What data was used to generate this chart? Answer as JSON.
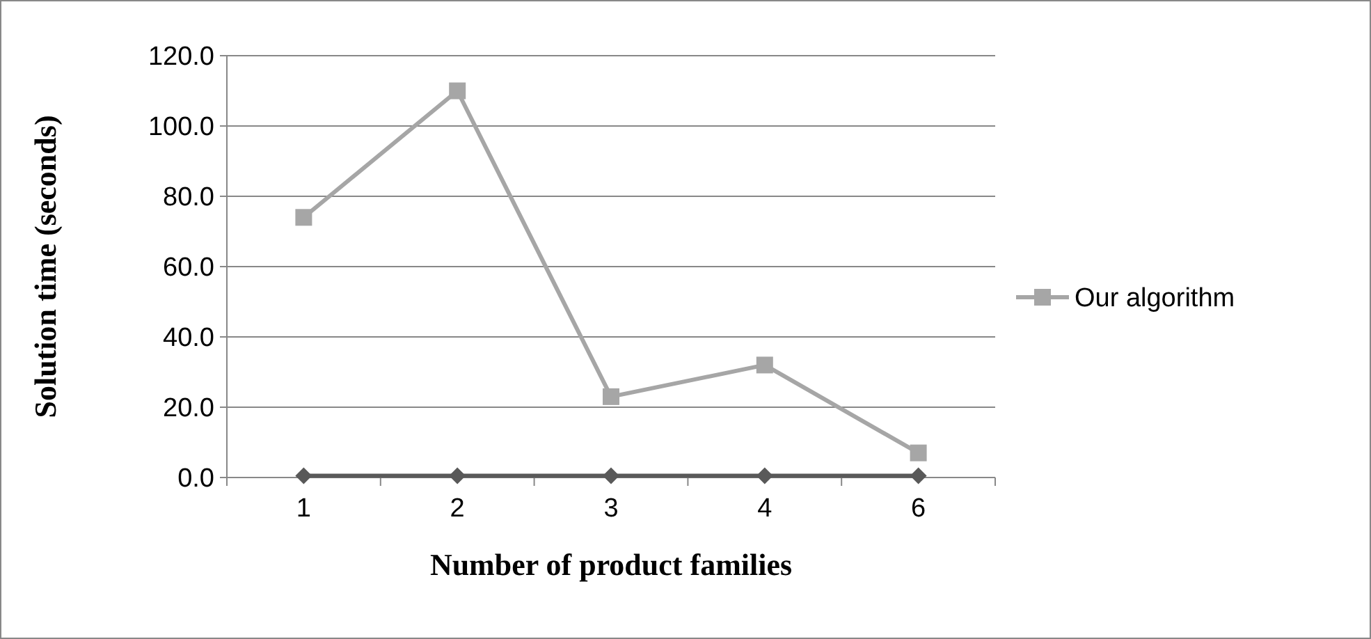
{
  "chart_data": {
    "type": "line",
    "xlabel": "Number of product families",
    "ylabel": "Solution time (seconds)",
    "categories": [
      "1",
      "2",
      "3",
      "4",
      "6"
    ],
    "series": [
      {
        "color": "#595959",
        "marker": "diamond",
        "values": [
          0.5,
          0.5,
          0.5,
          0.5,
          0.5
        ]
      },
      {
        "name": "Our algorithm",
        "color": "#a6a6a6",
        "marker": "square",
        "values": [
          74,
          110,
          23,
          32,
          7
        ]
      }
    ],
    "ylim": [
      0,
      120
    ],
    "yticks": [
      {
        "value": 0,
        "label": "0.0"
      },
      {
        "value": 20,
        "label": "20.0"
      },
      {
        "value": 40,
        "label": "40.0"
      },
      {
        "value": 60,
        "label": "60.0"
      },
      {
        "value": 80,
        "label": "80.0"
      },
      {
        "value": 100,
        "label": "100.0"
      },
      {
        "value": 120,
        "label": "120.0"
      }
    ],
    "grid": "y",
    "legend": "right",
    "line_style": "solid"
  }
}
